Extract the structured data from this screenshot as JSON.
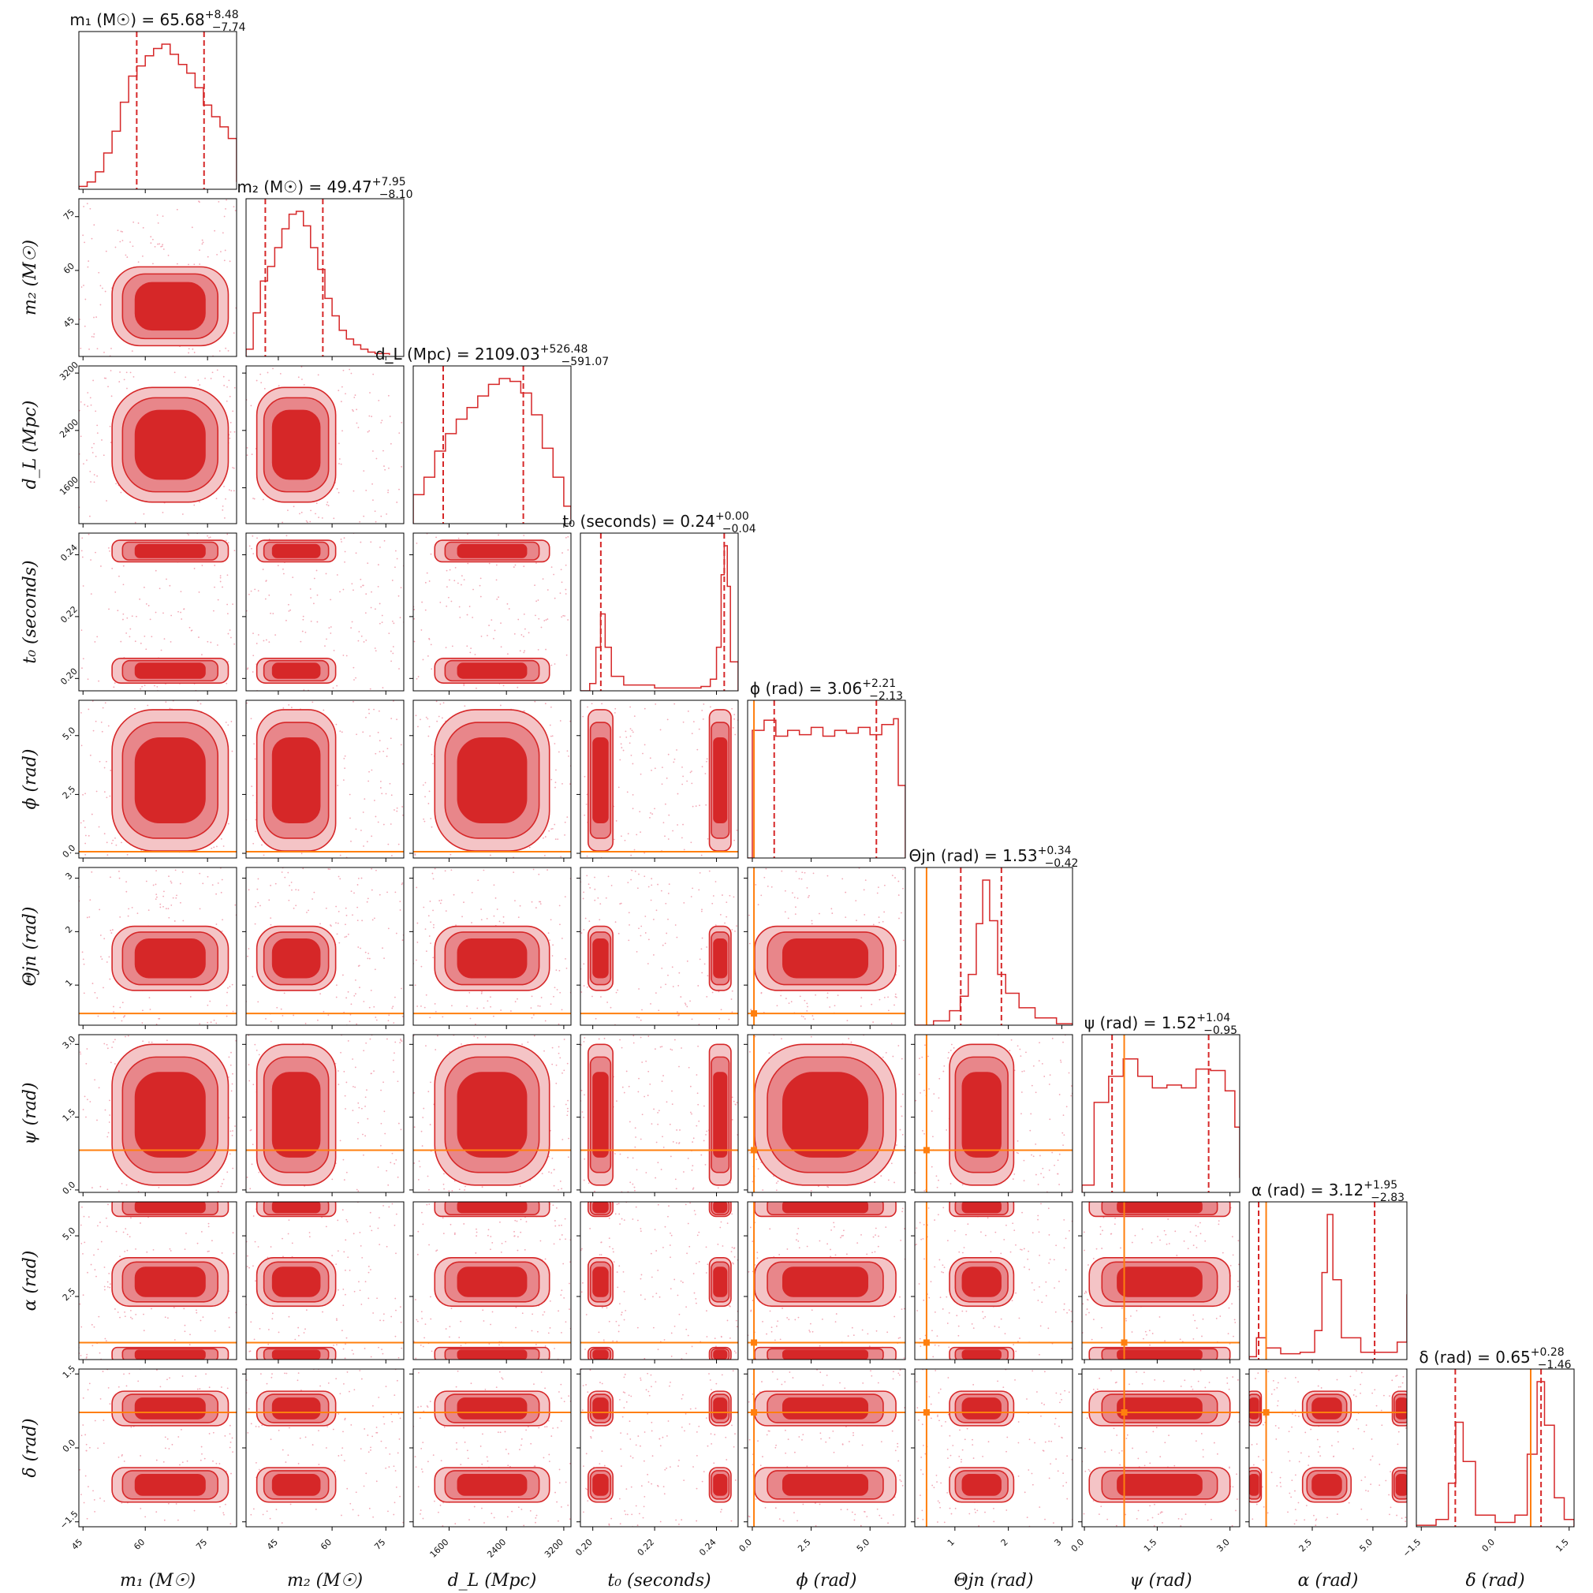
{
  "chart_data": {
    "type": "corner",
    "colors": {
      "posterior": "#d62728",
      "posterior_mid": "#e8868a",
      "posterior_light": "#f4c4c6",
      "scatter": "#f2a7b5",
      "truth": "#ff7f0e",
      "frame": "#000000"
    },
    "parameters": [
      {
        "key": "m1",
        "label": "m₁ (M☉)",
        "title": "m₁ (M☉) = 65.68",
        "median": 65.68,
        "err_plus": 8.48,
        "err_minus": 7.74,
        "range": [
          44,
          82
        ],
        "ticks": [
          45,
          60,
          75
        ],
        "tick_labels": [
          "45",
          "60",
          "75"
        ],
        "quantiles": [
          57.94,
          74.16
        ],
        "truth": null
      },
      {
        "key": "m2",
        "label": "m₂ (M☉)",
        "title": "m₂ (M☉) = 49.47",
        "median": 49.47,
        "err_plus": 7.95,
        "err_minus": 8.1,
        "range": [
          36,
          80
        ],
        "ticks": [
          45,
          60,
          75
        ],
        "tick_labels": [
          "45",
          "60",
          "75"
        ],
        "quantiles": [
          41.37,
          57.42
        ],
        "truth": null
      },
      {
        "key": "dL",
        "label": "d_L (Mpc)",
        "title": "d_L (Mpc) = 2109.03",
        "median": 2109.03,
        "err_plus": 526.48,
        "err_minus": 591.07,
        "range": [
          1100,
          3300
        ],
        "ticks": [
          1600,
          2400,
          3200
        ],
        "tick_labels": [
          "1600",
          "2400",
          "3200"
        ],
        "quantiles": [
          1517.96,
          2635.51
        ],
        "truth": null
      },
      {
        "key": "t0",
        "label": "t₀ (seconds)",
        "title": "t₀ (seconds) = 0.24",
        "median": 0.24,
        "err_plus": 0.0,
        "err_minus": 0.04,
        "range": [
          0.196,
          0.247
        ],
        "ticks": [
          0.2,
          0.22,
          0.24
        ],
        "tick_labels": [
          "0.20",
          "0.22",
          "0.24"
        ],
        "quantiles": [
          0.2026,
          0.2425
        ],
        "truth": null
      },
      {
        "key": "phi",
        "label": "ϕ (rad)",
        "title": "ϕ (rad) = 3.06",
        "median": 3.06,
        "err_plus": 2.21,
        "err_minus": 2.13,
        "range": [
          -0.2,
          6.5
        ],
        "ticks": [
          0.0,
          2.5,
          5.0
        ],
        "tick_labels": [
          "0.0",
          "2.5",
          "5.0"
        ],
        "quantiles": [
          0.93,
          5.27
        ],
        "truth": 0.07
      },
      {
        "key": "theta_jn",
        "label": "Θjn (rad)",
        "title": "Θjn (rad) = 1.53",
        "median": 1.53,
        "err_plus": 0.34,
        "err_minus": 0.42,
        "range": [
          0.25,
          3.2
        ],
        "ticks": [
          1,
          2,
          3
        ],
        "tick_labels": [
          "1",
          "2",
          "3"
        ],
        "quantiles": [
          1.11,
          1.87
        ],
        "truth": 0.47
      },
      {
        "key": "psi",
        "label": "ψ (rad)",
        "title": "ψ (rad) = 1.52",
        "median": 1.52,
        "err_plus": 1.04,
        "err_minus": 0.95,
        "range": [
          -0.05,
          3.2
        ],
        "ticks": [
          0.0,
          1.5,
          3.0
        ],
        "tick_labels": [
          "0.0",
          "1.5",
          "3.0"
        ],
        "quantiles": [
          0.57,
          2.56
        ],
        "truth": 0.82
      },
      {
        "key": "alpha",
        "label": "α (rad)",
        "title": "α (rad) = 3.12",
        "median": 3.12,
        "err_plus": 1.95,
        "err_minus": 2.83,
        "range": [
          -0.1,
          6.4
        ],
        "ticks": [
          2.5,
          5.0
        ],
        "tick_labels": [
          "2.5",
          "5.0"
        ],
        "quantiles": [
          0.29,
          5.07
        ],
        "truth": 0.6
      },
      {
        "key": "delta",
        "label": "δ (rad)",
        "title": "δ (rad) = 0.65",
        "median": 0.65,
        "err_plus": 0.28,
        "err_minus": 1.46,
        "range": [
          -1.6,
          1.6
        ],
        "ticks": [
          -1.5,
          0.0,
          1.5
        ],
        "tick_labels": [
          "−1.5",
          "0.0",
          "1.5"
        ],
        "quantiles": [
          -0.81,
          0.93
        ],
        "truth": 0.72
      }
    ],
    "marginal_shapes": {
      "m1": [
        [
          44,
          0.02
        ],
        [
          46,
          0.05
        ],
        [
          48,
          0.12
        ],
        [
          50,
          0.25
        ],
        [
          52,
          0.4
        ],
        [
          54,
          0.6
        ],
        [
          56,
          0.78
        ],
        [
          58,
          0.85
        ],
        [
          60,
          0.92
        ],
        [
          62,
          0.97
        ],
        [
          64,
          1.0
        ],
        [
          66,
          0.93
        ],
        [
          68,
          0.86
        ],
        [
          70,
          0.8
        ],
        [
          72,
          0.7
        ],
        [
          74,
          0.58
        ],
        [
          76,
          0.5
        ],
        [
          78,
          0.43
        ],
        [
          80,
          0.35
        ],
        [
          82,
          0.05
        ]
      ],
      "m2": [
        [
          36,
          0.05
        ],
        [
          38,
          0.3
        ],
        [
          40,
          0.52
        ],
        [
          42,
          0.62
        ],
        [
          44,
          0.75
        ],
        [
          46,
          0.88
        ],
        [
          48,
          0.98
        ],
        [
          50,
          1.0
        ],
        [
          52,
          0.9
        ],
        [
          54,
          0.75
        ],
        [
          56,
          0.6
        ],
        [
          58,
          0.4
        ],
        [
          60,
          0.28
        ],
        [
          62,
          0.18
        ],
        [
          64,
          0.12
        ],
        [
          66,
          0.08
        ],
        [
          68,
          0.05
        ],
        [
          70,
          0.03
        ],
        [
          72,
          0.02
        ],
        [
          76,
          0.01
        ]
      ],
      "dL": [
        [
          1100,
          0.2
        ],
        [
          1250,
          0.32
        ],
        [
          1400,
          0.5
        ],
        [
          1550,
          0.62
        ],
        [
          1700,
          0.72
        ],
        [
          1850,
          0.8
        ],
        [
          2000,
          0.88
        ],
        [
          2150,
          0.96
        ],
        [
          2300,
          1.0
        ],
        [
          2450,
          0.98
        ],
        [
          2600,
          0.9
        ],
        [
          2750,
          0.75
        ],
        [
          2900,
          0.52
        ],
        [
          3050,
          0.32
        ],
        [
          3200,
          0.12
        ],
        [
          3300,
          0.03
        ]
      ],
      "t0": [
        [
          0.196,
          0.0
        ],
        [
          0.199,
          0.05
        ],
        [
          0.201,
          0.3
        ],
        [
          0.2025,
          0.53
        ],
        [
          0.204,
          0.3
        ],
        [
          0.206,
          0.1
        ],
        [
          0.21,
          0.04
        ],
        [
          0.22,
          0.02
        ],
        [
          0.235,
          0.03
        ],
        [
          0.238,
          0.08
        ],
        [
          0.24,
          0.3
        ],
        [
          0.2415,
          0.8
        ],
        [
          0.2425,
          1.0
        ],
        [
          0.2435,
          0.72
        ],
        [
          0.2445,
          0.2
        ],
        [
          0.247,
          0.0
        ]
      ],
      "phi": [
        [
          -0.2,
          0.0
        ],
        [
          0.0,
          0.88
        ],
        [
          0.5,
          0.95
        ],
        [
          1.0,
          0.84
        ],
        [
          1.5,
          0.88
        ],
        [
          2.0,
          0.85
        ],
        [
          2.5,
          0.9
        ],
        [
          3.0,
          0.84
        ],
        [
          3.5,
          0.88
        ],
        [
          4.0,
          0.86
        ],
        [
          4.5,
          0.9
        ],
        [
          5.0,
          0.85
        ],
        [
          5.5,
          0.92
        ],
        [
          6.0,
          0.96
        ],
        [
          6.2,
          0.5
        ],
        [
          6.5,
          0.0
        ]
      ],
      "theta_jn": [
        [
          0.25,
          0.0
        ],
        [
          0.6,
          0.03
        ],
        [
          0.9,
          0.1
        ],
        [
          1.1,
          0.2
        ],
        [
          1.25,
          0.35
        ],
        [
          1.4,
          0.7
        ],
        [
          1.52,
          1.0
        ],
        [
          1.65,
          0.72
        ],
        [
          1.8,
          0.35
        ],
        [
          1.95,
          0.22
        ],
        [
          2.2,
          0.12
        ],
        [
          2.5,
          0.05
        ],
        [
          2.9,
          0.01
        ],
        [
          3.2,
          0.0
        ]
      ],
      "psi": [
        [
          -0.05,
          0.05
        ],
        [
          0.2,
          0.62
        ],
        [
          0.5,
          0.8
        ],
        [
          0.8,
          0.92
        ],
        [
          1.1,
          0.8
        ],
        [
          1.4,
          0.72
        ],
        [
          1.7,
          0.74
        ],
        [
          2.0,
          0.72
        ],
        [
          2.3,
          0.85
        ],
        [
          2.6,
          0.84
        ],
        [
          2.9,
          0.7
        ],
        [
          3.1,
          0.45
        ],
        [
          3.2,
          0.1
        ]
      ],
      "alpha": [
        [
          -0.1,
          0.02
        ],
        [
          0.2,
          0.15
        ],
        [
          0.6,
          0.08
        ],
        [
          1.2,
          0.04
        ],
        [
          2.0,
          0.05
        ],
        [
          2.6,
          0.2
        ],
        [
          2.9,
          0.6
        ],
        [
          3.12,
          1.0
        ],
        [
          3.35,
          0.55
        ],
        [
          3.7,
          0.15
        ],
        [
          4.5,
          0.05
        ],
        [
          5.5,
          0.05
        ],
        [
          6.0,
          0.12
        ],
        [
          6.4,
          0.45
        ]
      ],
      "delta": [
        [
          -1.6,
          0.01
        ],
        [
          -1.2,
          0.05
        ],
        [
          -0.95,
          0.3
        ],
        [
          -0.8,
          0.72
        ],
        [
          -0.65,
          0.45
        ],
        [
          -0.4,
          0.08
        ],
        [
          0.0,
          0.03
        ],
        [
          0.4,
          0.08
        ],
        [
          0.65,
          0.5
        ],
        [
          0.85,
          1.0
        ],
        [
          1.0,
          0.7
        ],
        [
          1.2,
          0.2
        ],
        [
          1.4,
          0.05
        ],
        [
          1.6,
          0.0
        ]
      ]
    }
  }
}
